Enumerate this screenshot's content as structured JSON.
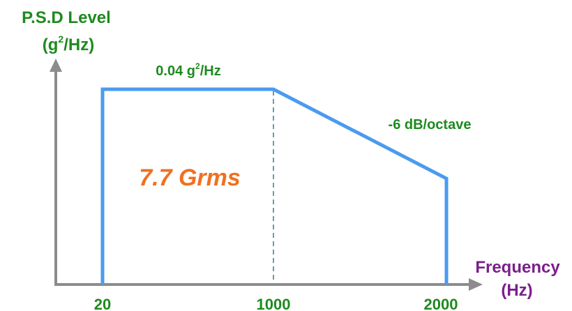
{
  "y_axis": {
    "title_line1": "P.S.D Level",
    "title_line2_pre": "(g",
    "title_line2_sup": "2",
    "title_line2_post": "/Hz)"
  },
  "x_axis": {
    "title_line1": "Frequency",
    "title_line2": "(Hz)",
    "ticks": [
      "20",
      "1000",
      "2000"
    ]
  },
  "annotations": {
    "plateau_value": "0.04 g",
    "plateau_sup": "2",
    "plateau_unit": "/Hz",
    "slope": "-6 dB/octave",
    "total": "7.7 Grms"
  },
  "colors": {
    "profile": "#4a9bef",
    "axis": "#8c8c8c",
    "green_text": "#1e8a1e",
    "purple_text": "#7a1f8a",
    "orange_text": "#f07020",
    "divider": "#3a7a8a"
  },
  "chart_data": {
    "type": "line",
    "x": [
      20,
      20,
      1000,
      2000,
      2000
    ],
    "y_shape": "flat 0.04 g^2/Hz from 20 to 1000 Hz, then -6 dB/octave to 2000 Hz",
    "divider_at": 1000
  }
}
